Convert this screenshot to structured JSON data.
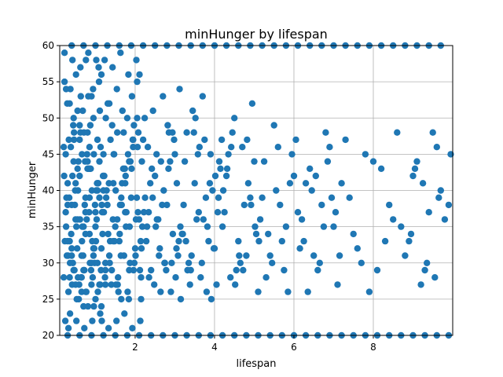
{
  "chart_data": {
    "type": "scatter",
    "title": "minHunger by lifespan",
    "xlabel": "lifespan",
    "ylabel": "minHunger",
    "xlim": [
      0.1,
      10.0
    ],
    "ylim": [
      20,
      60
    ],
    "xticks": [
      2,
      4,
      6,
      8
    ],
    "yticks": [
      20,
      25,
      30,
      35,
      40,
      45,
      50,
      55,
      60
    ],
    "grid": true,
    "color": "#1f77b4",
    "points": {
      "x": [
        0.2,
        0.25,
        0.3,
        0.35,
        0.4,
        0.45,
        0.5,
        0.55,
        0.6,
        0.65,
        0.7,
        0.75,
        0.8,
        0.85,
        0.9,
        0.95,
        1.0,
        1.05,
        1.1,
        1.15,
        0.22,
        0.32,
        0.42,
        0.52,
        0.62,
        0.72,
        0.82,
        0.92,
        1.02,
        1.12,
        0.28,
        0.38,
        0.48,
        0.58,
        0.68,
        0.78,
        0.88,
        0.98,
        1.08,
        1.18,
        0.24,
        0.34,
        0.44,
        0.54,
        0.64,
        0.74,
        0.84,
        0.94,
        1.04,
        1.14,
        0.26,
        0.36,
        0.46,
        0.56,
        0.66,
        0.76,
        0.86,
        0.96,
        1.06,
        1.16,
        0.21,
        0.31,
        0.41,
        0.51,
        0.61,
        0.71,
        0.81,
        0.91,
        1.01,
        1.11,
        0.27,
        0.37,
        0.47,
        0.57,
        0.67,
        0.77,
        0.87,
        0.97,
        1.07,
        1.17,
        0.23,
        0.33,
        0.43,
        0.53,
        0.63,
        0.73,
        0.83,
        0.93,
        1.03,
        1.13,
        0.29,
        0.39,
        0.49,
        0.59,
        0.69,
        0.79,
        0.89,
        0.99,
        1.09,
        1.19,
        0.25,
        0.35,
        0.45,
        0.55,
        0.65,
        0.75,
        0.85,
        0.95,
        1.05,
        1.15,
        0.3,
        0.4,
        0.5,
        0.6,
        0.7,
        0.8,
        0.9,
        1.0,
        1.1,
        1.2,
        0.2,
        0.3,
        0.4,
        0.5,
        0.6,
        0.7,
        0.8,
        0.9,
        1.0,
        1.1,
        0.35,
        0.45,
        0.55,
        0.65,
        0.75,
        0.85,
        0.95,
        1.05,
        1.15,
        1.25,
        0.22,
        0.42,
        0.62,
        0.82,
        1.02,
        0.32,
        0.52,
        0.72,
        0.92,
        1.12,
        0.26,
        0.46,
        0.66,
        0.86,
        1.06,
        0.36,
        0.56,
        0.76,
        0.96,
        1.16,
        1.2,
        1.25,
        1.3,
        1.35,
        1.4,
        1.45,
        1.5,
        1.55,
        1.6,
        1.65,
        1.7,
        1.75,
        1.8,
        1.85,
        1.9,
        1.95,
        2.0,
        2.05,
        2.1,
        2.15,
        1.22,
        1.32,
        1.42,
        1.52,
        1.62,
        1.72,
        1.82,
        1.92,
        2.02,
        2.12,
        1.28,
        1.38,
        1.48,
        1.58,
        1.68,
        1.78,
        1.88,
        1.98,
        2.08,
        2.18,
        1.24,
        1.34,
        1.44,
        1.54,
        1.64,
        1.74,
        1.84,
        1.94,
        2.04,
        2.14,
        1.26,
        1.36,
        1.46,
        1.56,
        1.66,
        1.76,
        1.86,
        1.96,
        2.06,
        2.16,
        1.21,
        1.31,
        1.41,
        1.51,
        1.61,
        1.71,
        1.81,
        1.91,
        2.01,
        2.11,
        1.27,
        1.37,
        1.47,
        1.57,
        1.67,
        1.77,
        1.87,
        1.97,
        2.07,
        2.17,
        1.23,
        1.43,
        1.63,
        1.83,
        2.03,
        1.33,
        1.53,
        1.73,
        1.93,
        2.13,
        1.25,
        1.45,
        1.65,
        1.85,
        2.05,
        1.35,
        1.55,
        1.75,
        1.95,
        2.15,
        2.2,
        2.3,
        2.4,
        2.5,
        2.6,
        2.7,
        2.8,
        2.9,
        3.0,
        3.1,
        2.25,
        2.35,
        2.45,
        2.55,
        2.65,
        2.75,
        2.85,
        2.95,
        3.05,
        3.15,
        2.22,
        2.42,
        2.62,
        2.82,
        3.02,
        2.32,
        2.52,
        2.72,
        2.92,
        3.12,
        2.28,
        2.48,
        2.68,
        2.88,
        3.08,
        2.38,
        2.58,
        2.78,
        2.98,
        3.18,
        2.24,
        2.44,
        2.64,
        2.84,
        3.04,
        2.34,
        2.54,
        2.74,
        2.94,
        3.14,
        3.2,
        3.3,
        3.4,
        3.5,
        3.6,
        3.7,
        3.8,
        3.9,
        4.0,
        4.1,
        3.25,
        3.35,
        3.45,
        3.55,
        3.65,
        3.75,
        3.85,
        3.95,
        4.05,
        4.15,
        3.22,
        3.42,
        3.62,
        3.82,
        4.02,
        3.32,
        3.52,
        3.72,
        3.92,
        4.12,
        3.28,
        3.48,
        3.68,
        3.88,
        4.08,
        3.38,
        3.58,
        3.78,
        3.98,
        4.18,
        4.2,
        4.3,
        4.4,
        4.5,
        4.6,
        4.7,
        4.8,
        4.9,
        5.0,
        5.1,
        4.25,
        4.45,
        4.65,
        4.85,
        5.05,
        4.35,
        4.55,
        4.75,
        4.95,
        5.15,
        4.22,
        4.52,
        4.82,
        5.12,
        4.32,
        4.62,
        4.92,
        4.42,
        4.72,
        5.02,
        5.2,
        5.4,
        5.6,
        5.8,
        6.0,
        5.3,
        5.5,
        5.7,
        5.9,
        6.1,
        5.25,
        5.45,
        5.65,
        5.85,
        6.05,
        5.35,
        5.55,
        5.75,
        5.95,
        6.15,
        6.2,
        6.4,
        6.6,
        6.8,
        7.0,
        6.3,
        6.5,
        6.7,
        6.9,
        7.1,
        6.25,
        6.45,
        6.65,
        6.85,
        7.05,
        6.35,
        6.55,
        6.75,
        6.95,
        7.15,
        7.2,
        7.5,
        7.8,
        8.1,
        8.4,
        7.3,
        7.6,
        7.9,
        8.2,
        8.5,
        7.4,
        7.7,
        8.0,
        8.3,
        8.6,
        8.7,
        9.0,
        9.3,
        9.6,
        9.9,
        8.8,
        9.1,
        9.4,
        9.7,
        8.9,
        9.2,
        9.5,
        9.8,
        9.05,
        9.35,
        9.65,
        9.95,
        8.95,
        9.25,
        9.55,
        0.3,
        0.6,
        0.9,
        1.2,
        1.5,
        1.8,
        2.1,
        2.4,
        2.7,
        3.0,
        3.3,
        3.6,
        3.9,
        4.2,
        4.5,
        4.8,
        5.1,
        5.4,
        5.7,
        6.0,
        6.3,
        6.6,
        6.9,
        7.2,
        7.5,
        7.8,
        8.1,
        8.4,
        8.7,
        9.0,
        9.3,
        9.6,
        9.9,
        0.4,
        0.7,
        1.0,
        1.3,
        1.6,
        1.9,
        2.2,
        2.5,
        2.8,
        3.1,
        3.4,
        3.7,
        4.0,
        4.3,
        4.6,
        4.9,
        5.2,
        5.5,
        5.8,
        6.1,
        6.4,
        6.7,
        7.0,
        7.3,
        7.6,
        7.9,
        8.2,
        8.5,
        8.8,
        9.1,
        9.4,
        9.7
      ],
      "y": [
        28,
        45,
        33,
        52,
        38,
        29,
        41,
        36,
        47,
        31,
        24,
        39,
        43,
        34,
        27,
        50,
        37,
        30,
        44,
        32,
        55,
        26,
        42,
        35,
        48,
        29,
        53,
        33,
        40,
        27,
        31,
        46,
        38,
        25,
        51,
        36,
        43,
        30,
        57,
        34,
        22,
        39,
        49,
        32,
        28,
        44,
        37,
        54,
        41,
        29,
        35,
        23,
        47,
        40,
        33,
        58,
        30,
        45,
        26,
        38,
        42,
        31,
        27,
        56,
        36,
        48,
        24,
        40,
        33,
        51,
        39,
        54,
        29,
        44,
        35,
        26,
        49,
        32,
        41,
        37,
        33,
        47,
        30,
        25,
        53,
        38,
        43,
        28,
        36,
        46,
        52,
        34,
        40,
        27,
        31,
        45,
        29,
        38,
        55,
        42,
        37,
        28,
        50,
        43,
        26,
        34,
        39,
        31,
        47,
        24,
        41,
        32,
        36,
        49,
        29,
        44,
        53,
        35,
        27,
        40,
        46,
        38,
        31,
        27,
        42,
        35,
        48,
        30,
        25,
        39,
        33,
        44,
        51,
        28,
        37,
        46,
        32,
        40,
        56,
        29,
        59,
        58,
        57,
        59,
        58,
        21,
        22,
        21,
        22,
        23,
        54,
        48,
        45,
        43,
        41,
        30,
        28,
        26,
        24,
        22,
        45,
        30,
        38,
        52,
        27,
        41,
        35,
        48,
        33,
        25,
        43,
        37,
        50,
        29,
        39,
        46,
        32,
        55,
        36,
        28,
        42,
        34,
        49,
        27,
        38,
        31,
        45,
        53,
        36,
        29,
        40,
        47,
        33,
        26,
        51,
        37,
        44,
        30,
        48,
        35,
        28,
        41,
        36,
        54,
        31,
        43,
        25,
        47,
        39,
        33,
        50,
        30,
        45,
        27,
        38,
        42,
        35,
        29,
        46,
        32,
        37,
        52,
        29,
        40,
        34,
        48,
        26,
        43,
        31,
        56,
        39,
        33,
        45,
        28,
        41,
        35,
        30,
        49,
        37,
        44,
        58,
        57,
        59,
        56,
        58,
        21,
        22,
        23,
        21,
        22,
        27,
        33,
        39,
        44,
        50,
        31,
        36,
        41,
        47,
        25,
        47,
        35,
        29,
        42,
        31,
        53,
        38,
        26,
        45,
        33,
        39,
        28,
        51,
        36,
        44,
        30,
        48,
        34,
        41,
        25,
        37,
        43,
        32,
        49,
        28,
        46,
        35,
        40,
        30,
        54,
        33,
        27,
        38,
        44,
        31,
        41,
        36,
        29,
        47,
        34,
        50,
        39,
        26,
        43,
        32,
        37,
        45,
        30,
        48,
        35,
        34,
        48,
        29,
        41,
        37,
        53,
        26,
        45,
        32,
        39,
        44,
        30,
        51,
        36,
        28,
        47,
        33,
        40,
        27,
        43,
        38,
        31,
        46,
        35,
        42,
        29,
        50,
        36,
        25,
        44,
        33,
        48,
        30,
        41,
        37,
        27,
        45,
        39,
        32,
        47,
        35,
        42,
        28,
        50,
        33,
        46,
        31,
        39,
        44,
        26,
        37,
        48,
        30,
        41,
        34,
        45,
        29,
        38,
        52,
        36,
        40,
        27,
        47,
        33,
        43,
        31,
        38,
        46,
        29,
        35,
        39,
        31,
        46,
        35,
        42,
        28,
        49,
        33,
        41,
        37,
        44,
        30,
        38,
        26,
        47,
        34,
        40,
        29,
        45,
        32,
        36,
        43,
        29,
        48,
        35,
        41,
        31,
        38,
        46,
        27,
        33,
        40,
        30,
        44,
        37,
        26,
        42,
        35,
        39,
        31,
        41,
        34,
        45,
        29,
        38,
        47,
        32,
        26,
        43,
        36,
        39,
        30,
        44,
        33,
        48,
        35,
        42,
        29,
        46,
        38,
        31,
        44,
        37,
        40,
        33,
        27,
        48,
        36,
        43,
        30,
        39,
        45,
        34,
        41,
        28,
        20,
        20,
        20,
        20,
        20,
        20,
        20,
        20,
        20,
        20,
        20,
        20,
        20,
        20,
        20,
        20,
        20,
        20,
        20,
        20,
        20,
        20,
        20,
        20,
        20,
        20,
        20,
        20,
        20,
        20,
        20,
        20,
        20,
        60,
        60,
        60,
        60,
        60,
        60,
        60,
        60,
        60,
        60,
        60,
        60,
        60,
        60,
        60,
        60,
        60,
        60,
        60,
        60,
        60,
        60,
        60,
        60,
        60,
        60,
        60,
        60,
        60,
        60,
        60,
        60
      ]
    }
  }
}
